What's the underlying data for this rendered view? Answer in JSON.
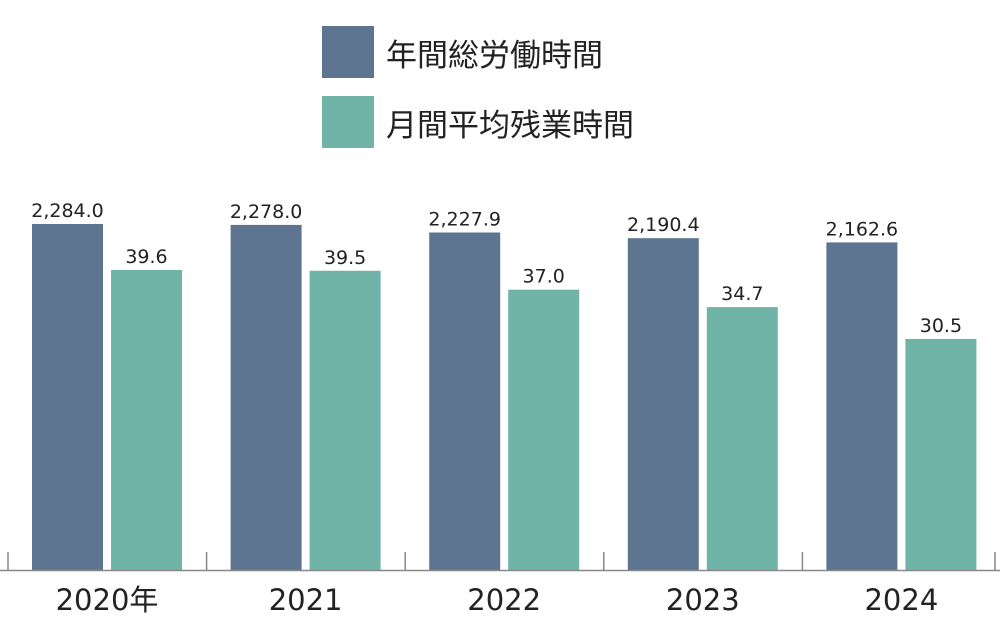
{
  "chart_data": {
    "type": "bar",
    "categories": [
      "2020年",
      "2021",
      "2022",
      "2023",
      "2024"
    ],
    "series": [
      {
        "name": "年間総労働時間",
        "color": "#5e7591",
        "values": [
          2284.0,
          2278.0,
          2227.9,
          2190.4,
          2162.6
        ],
        "labels": [
          "2,284.0",
          "2,278.0",
          "2,227.9",
          "2,190.4",
          "2,162.6"
        ]
      },
      {
        "name": "月間平均残業時間",
        "color": "#6fb4a6",
        "values": [
          39.6,
          39.5,
          37.0,
          34.7,
          30.5
        ],
        "labels": [
          "39.6",
          "39.5",
          "37.0",
          "34.7",
          "30.5"
        ]
      }
    ],
    "legend_position": "top-center",
    "grid": false,
    "axis_color": "#888888"
  }
}
